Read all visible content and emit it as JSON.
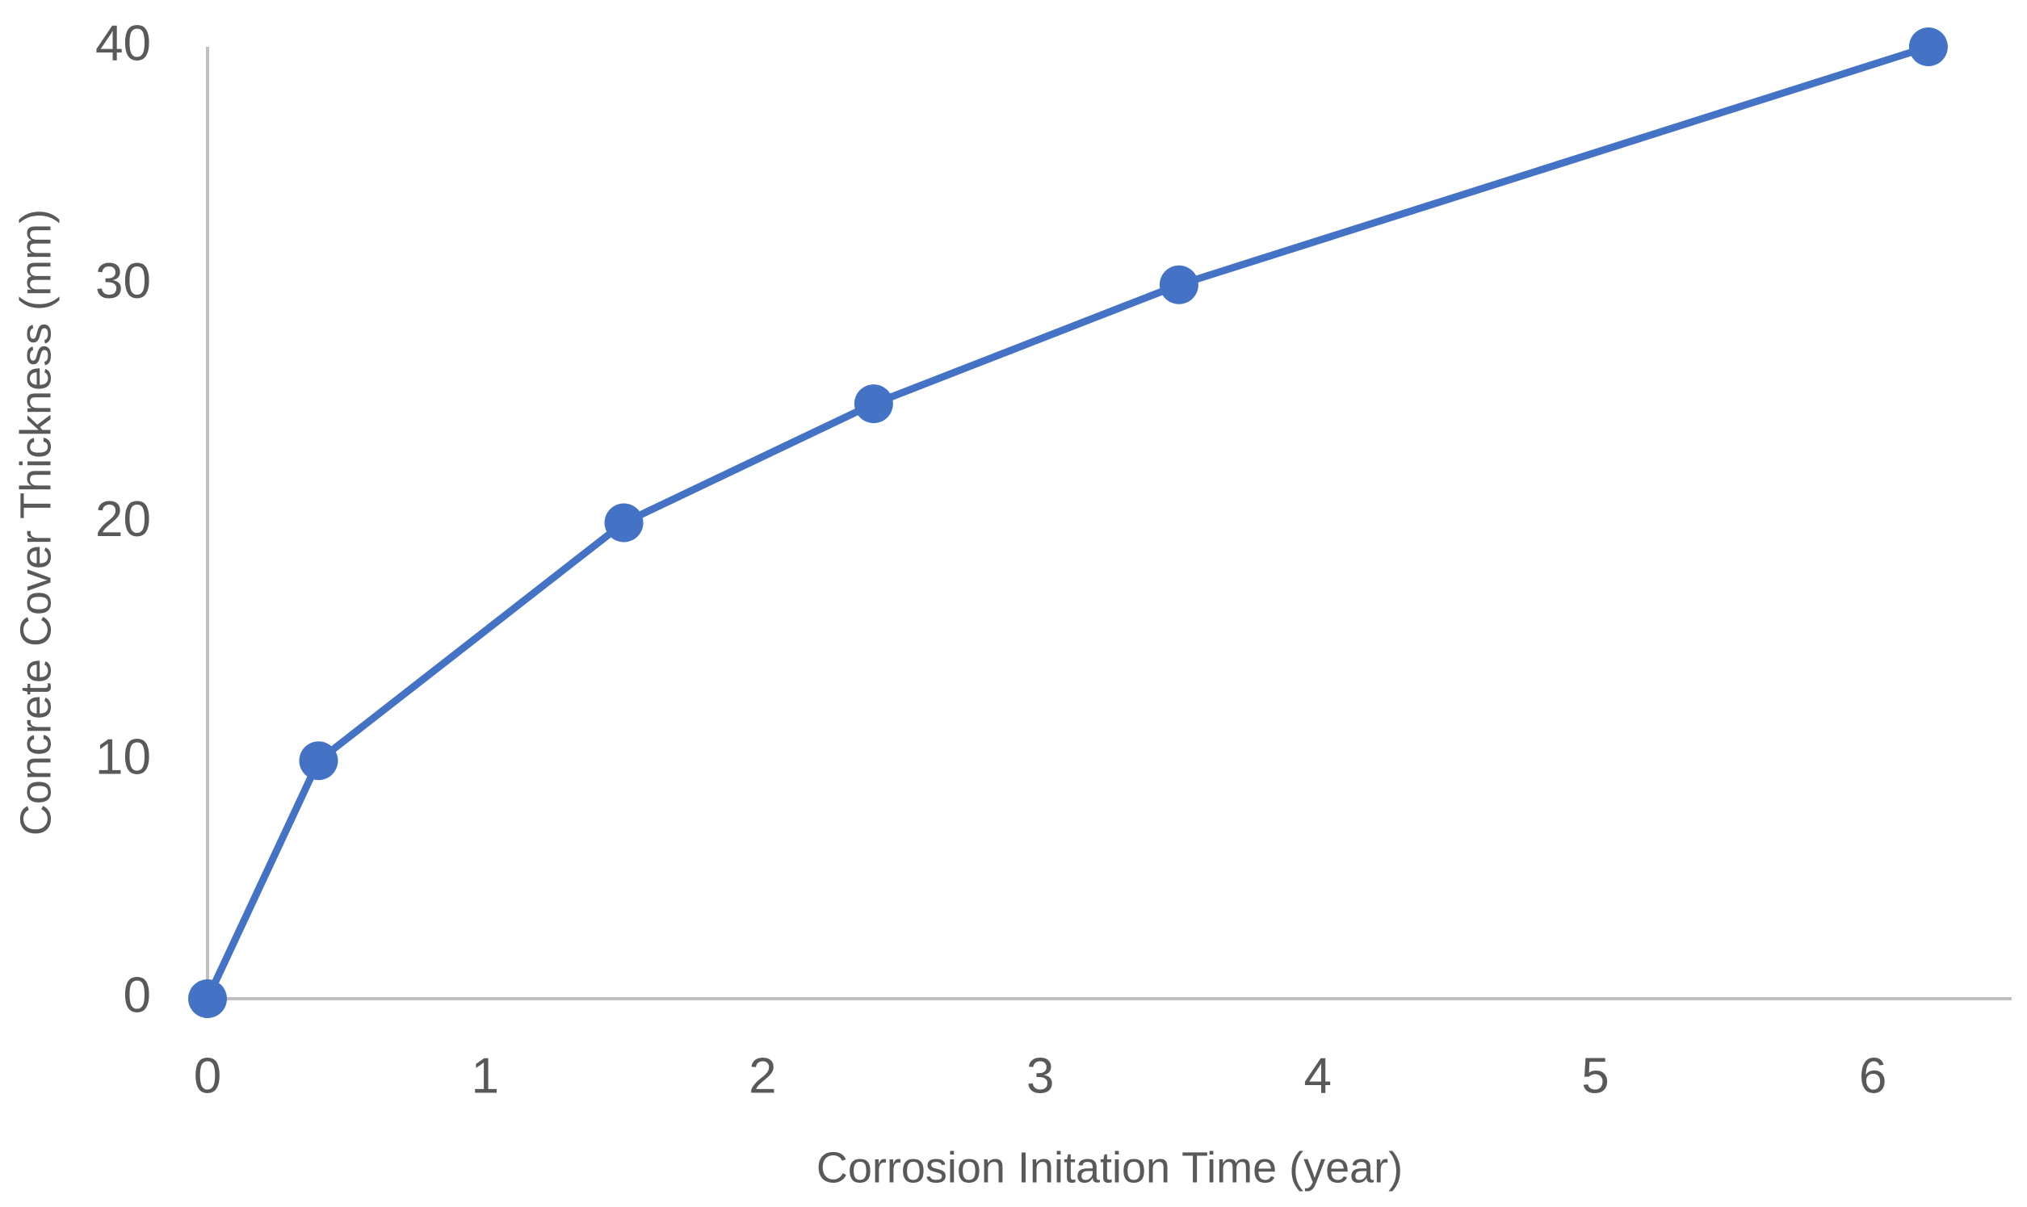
{
  "chart_data": {
    "type": "line",
    "x_label": "Corrosion Initation Time (year)",
    "y_label": "Concrete Cover Thickness (mm)",
    "x": [
      0,
      0.4,
      1.5,
      2.4,
      3.5,
      6.2
    ],
    "values": [
      0,
      10,
      20,
      25,
      30,
      40
    ],
    "color": "#4472c4",
    "xlim": [
      0,
      6.5
    ],
    "xticks": [
      0,
      1,
      2,
      3,
      4,
      5,
      6
    ],
    "ylim": [
      0,
      40
    ],
    "yticks": [
      0,
      10,
      20,
      30,
      40
    ],
    "grid": false
  }
}
